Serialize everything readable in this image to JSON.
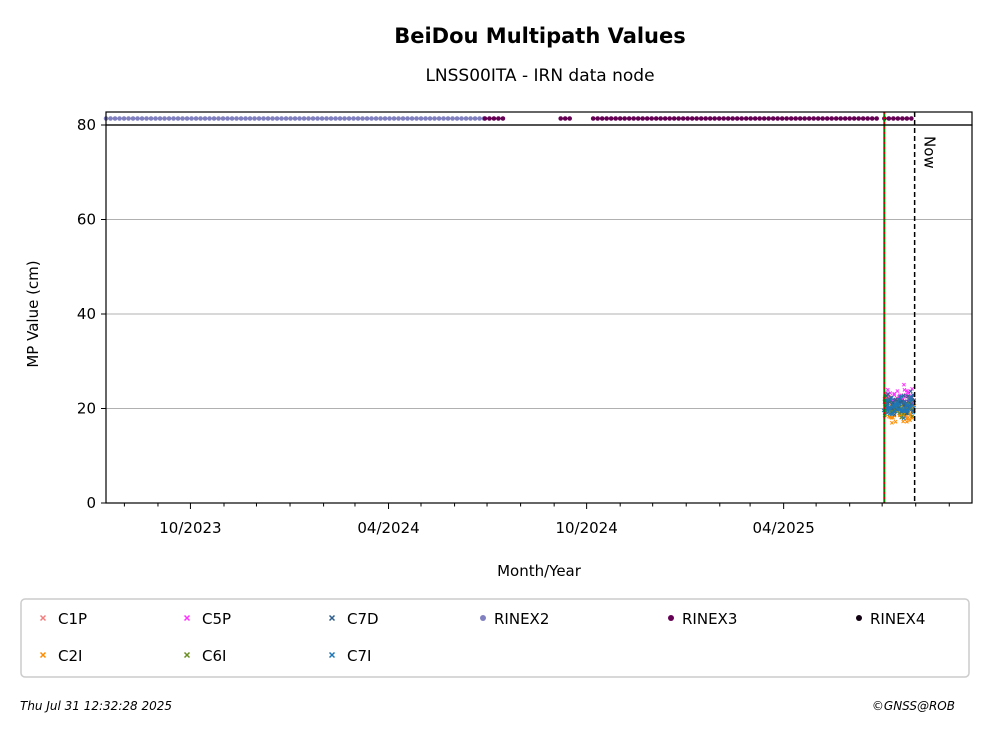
{
  "chart_data": {
    "type": "scatter",
    "title": "BeiDou Multipath Values",
    "subtitle": "LNSS00ITA - IRN data node",
    "xlabel": "Month/Year",
    "ylabel": "MP Value (cm)",
    "x_range": [
      "2023-07-15",
      "2025-09-22"
    ],
    "ylim": [
      0,
      80
    ],
    "y_ticks": [
      0,
      20,
      40,
      60,
      80
    ],
    "x_ticks": [
      {
        "date": "2023-10-01",
        "label": "10/2023"
      },
      {
        "date": "2024-04-01",
        "label": "04/2024"
      },
      {
        "date": "2024-10-01",
        "label": "10/2024"
      },
      {
        "date": "2025-04-01",
        "label": "04/2025"
      }
    ],
    "x_minor_ticks": [
      "2023-08-01",
      "2023-09-01",
      "2023-11-01",
      "2023-12-01",
      "2024-01-01",
      "2024-02-01",
      "2024-03-01",
      "2024-05-01",
      "2024-06-01",
      "2024-07-01",
      "2024-08-01",
      "2024-09-01",
      "2024-11-01",
      "2024-12-01",
      "2025-01-01",
      "2025-02-01",
      "2025-03-01",
      "2025-05-01",
      "2025-06-01",
      "2025-07-01",
      "2025-08-01",
      "2025-09-01"
    ],
    "grid": "y",
    "now_label": "Now",
    "now_date": "2025-07-31",
    "start_line_date": "2025-07-03",
    "rinex_status": [
      {
        "format": "RINEX2",
        "start": "2023-07-15",
        "end": "2024-06-29"
      },
      {
        "format": "RINEX3",
        "start": "2024-06-29",
        "end": "2024-07-19"
      },
      {
        "format": "RINEX3",
        "start": "2024-09-07",
        "end": "2024-09-18"
      },
      {
        "format": "RINEX3",
        "start": "2024-10-07",
        "end": "2025-06-28"
      },
      {
        "format": "RINEX3",
        "start": "2025-07-03",
        "end": "2025-07-30"
      }
    ],
    "mp_data_range": {
      "start": "2025-07-03",
      "end": "2025-07-30"
    },
    "series": [
      {
        "name": "C1P",
        "color": "#f08080",
        "marker": "x",
        "mean": 21,
        "spread": 2.2
      },
      {
        "name": "C2I",
        "color": "#ff8c00",
        "marker": "x",
        "mean": 19,
        "spread": 2.0
      },
      {
        "name": "C5P",
        "color": "#ff33ff",
        "marker": "x",
        "mean": 22,
        "spread": 2.2
      },
      {
        "name": "C6I",
        "color": "#6b8e23",
        "marker": "x",
        "mean": 20.5,
        "spread": 1.8
      },
      {
        "name": "C7D",
        "color": "#2f5f8f",
        "marker": "x",
        "mean": 21,
        "spread": 2.0
      },
      {
        "name": "C7I",
        "color": "#1f77b4",
        "marker": "x",
        "mean": 20.5,
        "spread": 2.0
      }
    ],
    "rinex_legend": [
      {
        "name": "RINEX2",
        "color": "#8080c0"
      },
      {
        "name": "RINEX3",
        "color": "#660055"
      },
      {
        "name": "RINEX4",
        "color": "#110011"
      }
    ],
    "legend_placement": "bottom"
  },
  "footer": {
    "timestamp": "Thu Jul 31 12:32:28 2025",
    "credit": "©GNSS@ROB"
  }
}
